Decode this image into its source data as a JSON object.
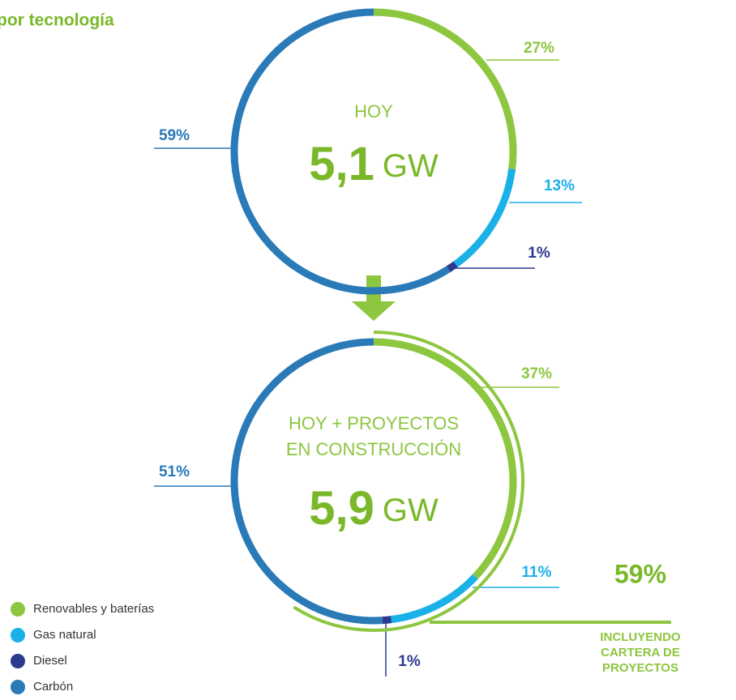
{
  "title": "por tecnología",
  "legend": [
    {
      "name": "Renovables y baterías",
      "color": "#8dc63f"
    },
    {
      "name": "Gas natural",
      "color": "#1ab0e8"
    },
    {
      "name": "Diesel",
      "color": "#2b3a8e"
    },
    {
      "name": "Carbón",
      "color": "#2a7ab8"
    }
  ],
  "chart_data": [
    {
      "type": "donut",
      "title": [
        "HOY"
      ],
      "total": "5,1",
      "unit": "GW",
      "values": [
        27,
        13,
        1,
        59
      ],
      "value_labels": [
        "27%",
        "13%",
        "1%",
        "59%"
      ]
    },
    {
      "type": "donut",
      "title": [
        "HOY + PROYECTOS",
        "EN CONSTRUCCIÓN"
      ],
      "total": "5,9",
      "unit": "GW",
      "values": [
        37,
        11,
        1,
        51
      ],
      "value_labels": [
        "37%",
        "11%",
        "1%",
        "51%"
      ],
      "outer": {
        "value": 59,
        "label": "59%",
        "note": [
          "INCLUYENDO",
          "CARTERA DE",
          "PROYECTOS"
        ]
      }
    }
  ]
}
